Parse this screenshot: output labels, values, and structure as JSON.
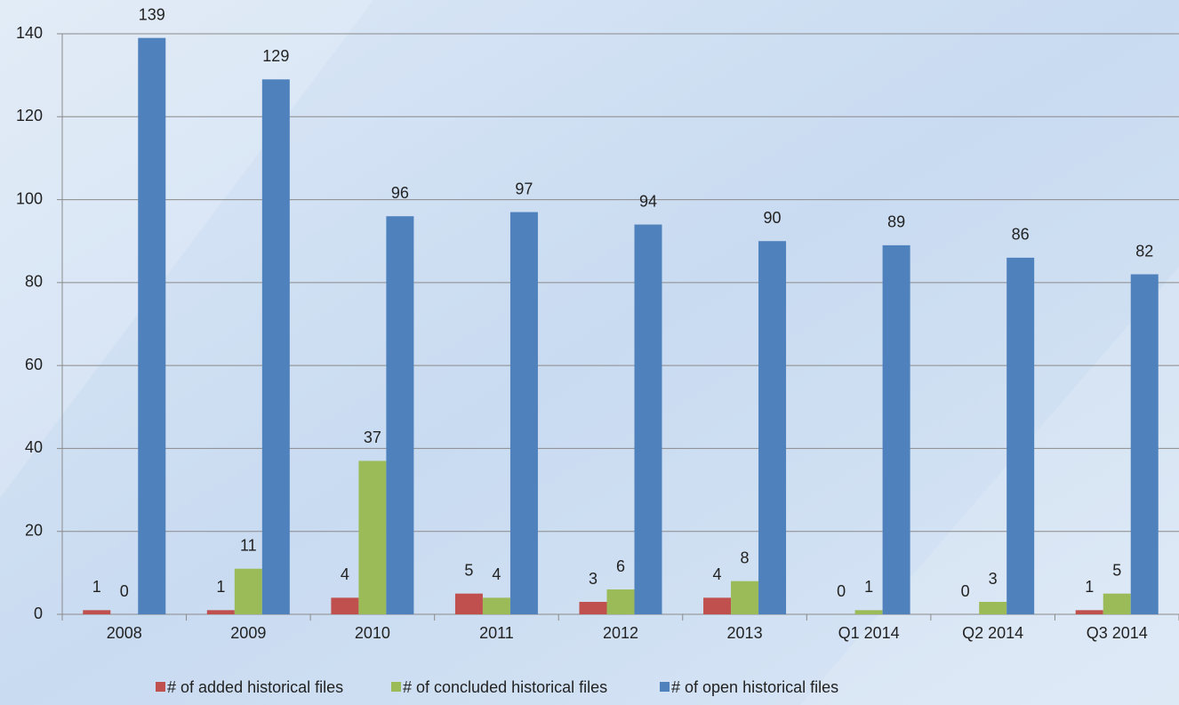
{
  "chart_data": {
    "type": "bar",
    "categories": [
      "2008",
      "2009",
      "2010",
      "2011",
      "2012",
      "2013",
      "Q1 2014",
      "Q2 2014",
      "Q3 2014"
    ],
    "series": [
      {
        "name": "# of added historical files",
        "color": "#c0504d",
        "values": [
          1,
          1,
          4,
          5,
          3,
          4,
          0,
          0,
          1
        ]
      },
      {
        "name": "# of concluded historical files",
        "color": "#9bbb59",
        "values": [
          0,
          11,
          37,
          4,
          6,
          8,
          1,
          3,
          5
        ]
      },
      {
        "name": "# of open historical files",
        "color": "#4f81bd",
        "values": [
          139,
          129,
          96,
          97,
          94,
          90,
          89,
          86,
          82
        ]
      }
    ],
    "ylim": [
      0,
      140
    ],
    "yticks": [
      0,
      20,
      40,
      60,
      80,
      100,
      120,
      140
    ],
    "grid": true,
    "legend": "bottom"
  }
}
